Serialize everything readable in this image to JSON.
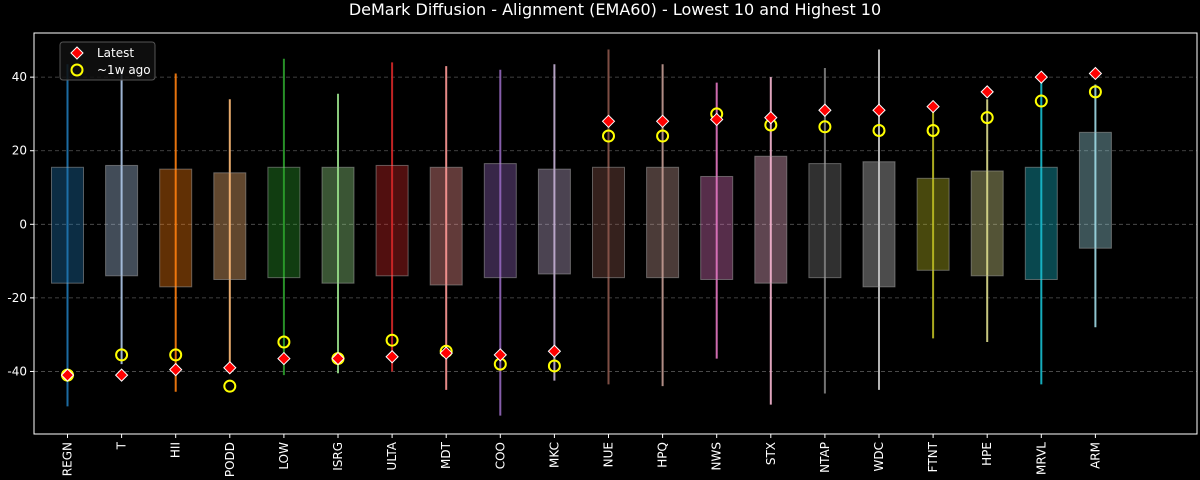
{
  "chart_data": {
    "type": "box",
    "title": "DeMark Diffusion - Alignment (EMA60) - Lowest 10 and Highest 10",
    "xlabel": "",
    "ylabel": "",
    "ylim": [
      -57,
      52
    ],
    "yticks": [
      -40,
      -20,
      0,
      20,
      40
    ],
    "grid": "y-dashed",
    "legend_position": "top-left",
    "legend": [
      {
        "label": "Latest",
        "marker": "diamond",
        "color": "#ff0000"
      },
      {
        "label": "~1w ago",
        "marker": "circle",
        "color": "#ffff00"
      }
    ],
    "categories": [
      "REGN",
      "T",
      "HII",
      "PODD",
      "LOW",
      "ISRG",
      "ULTA",
      "MDT",
      "COO",
      "MKC",
      "NUE",
      "HPQ",
      "NWS",
      "STX",
      "NTAP",
      "WDC",
      "FTNT",
      "HPE",
      "MRVL",
      "ARM"
    ],
    "colors": [
      "#1f77b4",
      "#aec7e8",
      "#ff7f0e",
      "#ffbb78",
      "#2ca02c",
      "#98df8a",
      "#d62728",
      "#ff9896",
      "#9467bd",
      "#c5b0d5",
      "#8c564b",
      "#c49c94",
      "#e377c2",
      "#f7b6d2",
      "#7f7f7f",
      "#c7c7c7",
      "#bcbd22",
      "#dbdb8d",
      "#17becf",
      "#9edae5"
    ],
    "box_q1": [
      -16,
      -14,
      -17,
      -15,
      -14.5,
      -16,
      -14,
      -16.5,
      -14.5,
      -13.5,
      -14.5,
      -14.5,
      -15,
      -16,
      -14.5,
      -17,
      -12.5,
      -14,
      -15,
      -6.5
    ],
    "box_q3": [
      15.5,
      16,
      15,
      14,
      15.5,
      15.5,
      16,
      15.5,
      16.5,
      15,
      15.5,
      15.5,
      13,
      18.5,
      16.5,
      17,
      12.5,
      14.5,
      15.5,
      25
    ],
    "whisker_low": [
      -49.5,
      -38,
      -45.5,
      -40,
      -41,
      -40.5,
      -40,
      -45,
      -52,
      -42.5,
      -43.5,
      -44,
      -36.5,
      -49,
      -46,
      -45,
      -31,
      -32,
      -43.5,
      -28
    ],
    "whisker_high": [
      43.5,
      42,
      41,
      34,
      45,
      35.5,
      44,
      43,
      42,
      43.5,
      47.5,
      43.5,
      38.5,
      40,
      42.5,
      47.5,
      30.5,
      34,
      40,
      38
    ],
    "series": [
      {
        "name": "Latest",
        "values": [
          -41,
          -41,
          -39.5,
          -39,
          -36.5,
          -36.5,
          -36,
          -35,
          -35.5,
          -34.5,
          28,
          28,
          28.5,
          29,
          31,
          31,
          32,
          36,
          40,
          41
        ]
      },
      {
        "name": "~1w ago",
        "values": [
          -41,
          -35.5,
          -35.5,
          -44,
          -32,
          -36.5,
          -31.5,
          -34.5,
          -38,
          -38.5,
          24,
          24,
          30,
          27,
          26.5,
          25.5,
          25.5,
          29,
          33.5,
          36
        ]
      }
    ]
  }
}
